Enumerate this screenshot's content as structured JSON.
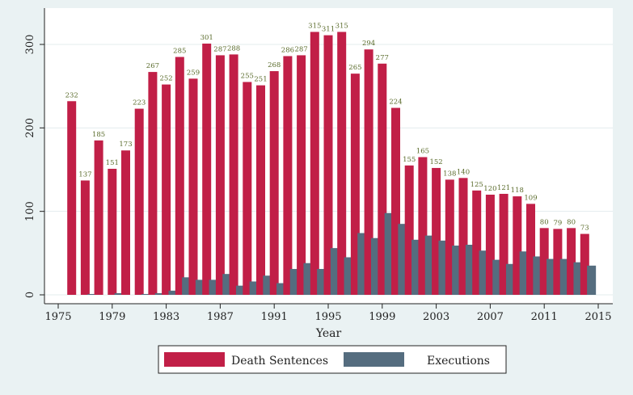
{
  "colors": {
    "background": "#eaf2f3",
    "plot": "#ffffff",
    "death_sentences": "#c11f47",
    "executions": "#556d7f",
    "data_label": "#5a6b2b"
  },
  "chart_data": {
    "type": "bar",
    "title": "",
    "xlabel": "Year",
    "ylabel": "",
    "xlim": [
      1974,
      2015
    ],
    "ylim": [
      0,
      330
    ],
    "x_ticks": [
      "1975",
      "1979",
      "1983",
      "1987",
      "1991",
      "1995",
      "1999",
      "2003",
      "2007",
      "2011",
      "2015"
    ],
    "y_ticks": [
      "0",
      "100",
      "200",
      "300"
    ],
    "grid": "horizontal",
    "legend_position": "bottom",
    "years": [
      1976,
      1977,
      1978,
      1979,
      1980,
      1981,
      1982,
      1983,
      1984,
      1985,
      1986,
      1987,
      1988,
      1989,
      1990,
      1991,
      1992,
      1993,
      1994,
      1995,
      1996,
      1997,
      1998,
      1999,
      2000,
      2001,
      2002,
      2003,
      2004,
      2005,
      2006,
      2007,
      2008,
      2009,
      2010,
      2011,
      2012,
      2013,
      2014
    ],
    "series": [
      {
        "name": "Death Sentences",
        "values": [
          232,
          137,
          185,
          151,
          173,
          223,
          267,
          252,
          285,
          259,
          301,
          287,
          288,
          255,
          251,
          268,
          286,
          287,
          315,
          311,
          315,
          265,
          294,
          277,
          224,
          155,
          165,
          152,
          138,
          140,
          125,
          120,
          121,
          118,
          109,
          80,
          79,
          80,
          73
        ],
        "labels": [
          "232",
          "137",
          "185",
          "151",
          "173",
          "223",
          "267",
          "252",
          "285",
          "259",
          "301",
          "287",
          "288",
          "255",
          "251",
          "268",
          "286",
          "287",
          "315",
          "311",
          "315",
          "265",
          "294",
          "277",
          "224",
          "155",
          "165",
          "152",
          "138",
          "140",
          "125",
          "120",
          "121",
          "118",
          "109",
          "80",
          "79",
          "80",
          "73"
        ]
      },
      {
        "name": "Executions",
        "values": [
          0,
          1,
          0,
          2,
          0,
          1,
          2,
          5,
          21,
          18,
          18,
          25,
          11,
          16,
          23,
          14,
          31,
          38,
          31,
          56,
          45,
          74,
          68,
          98,
          85,
          66,
          71,
          65,
          59,
          60,
          53,
          42,
          37,
          52,
          46,
          43,
          43,
          39,
          35
        ]
      }
    ]
  }
}
